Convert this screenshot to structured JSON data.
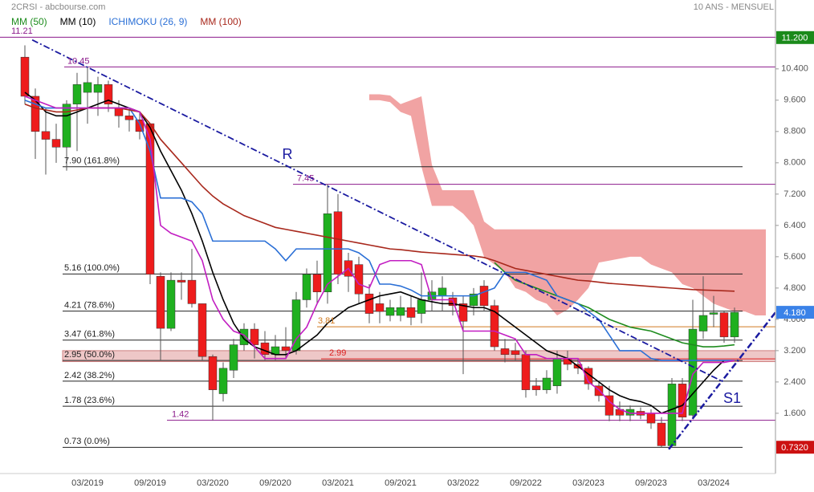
{
  "header": {
    "source": "2CRSI - abcbourse.com",
    "period": "10 ANS - MENSUEL"
  },
  "chart_data": {
    "type": "candlestick",
    "categories": [
      null,
      null,
      null,
      null,
      null,
      null,
      "03/2019",
      null,
      null,
      null,
      null,
      null,
      "09/2019",
      null,
      null,
      null,
      null,
      null,
      "03/2020",
      null,
      null,
      null,
      null,
      null,
      "09/2020",
      null,
      null,
      null,
      null,
      null,
      "03/2021",
      null,
      null,
      null,
      null,
      null,
      "09/2021",
      null,
      null,
      null,
      null,
      null,
      "03/2022",
      null,
      null,
      null,
      null,
      null,
      "09/2022",
      null,
      null,
      null,
      null,
      null,
      "03/2023",
      null,
      null,
      null,
      null,
      null,
      "09/2023",
      null,
      null,
      null,
      null,
      null,
      "03/2024",
      null,
      null,
      null,
      null,
      null
    ],
    "open": [
      10.7,
      9.7,
      8.8,
      8.6,
      8.4,
      9.5,
      9.8,
      9.8,
      10.0,
      9.4,
      9.2,
      9.1,
      9.0,
      5.1,
      3.77,
      5.0,
      5.0,
      4.4,
      3.05,
      2.1,
      2.7,
      3.35,
      3.75,
      3.4,
      3.1,
      3.3,
      3.2,
      4.5,
      5.15,
      4.7,
      6.75,
      5.5,
      5.4,
      4.65,
      4.4,
      4.1,
      4.1,
      4.3,
      4.15,
      4.5,
      4.6,
      4.55,
      4.4,
      4.35,
      4.85,
      4.35,
      3.25,
      3.2,
      3.1,
      2.3,
      2.2,
      2.3,
      3.0,
      2.85,
      2.75,
      2.3,
      2.05,
      1.7,
      1.55,
      1.65,
      1.6,
      1.35,
      0.77,
      2.35,
      1.55,
      3.7,
      4.13,
      4.17,
      3.55,
      null,
      null,
      null
    ],
    "high": [
      11.0,
      9.9,
      9.4,
      9.0,
      9.6,
      10.3,
      10.45,
      10.2,
      10.1,
      9.6,
      9.4,
      9.3,
      9.0,
      5.2,
      5.2,
      5.2,
      5.8,
      4.4,
      3.1,
      2.9,
      3.5,
      3.9,
      3.9,
      3.7,
      3.6,
      3.8,
      4.7,
      5.3,
      5.5,
      7.45,
      7.2,
      5.7,
      5.6,
      4.9,
      4.7,
      4.5,
      4.6,
      4.6,
      5.2,
      5.0,
      5.1,
      4.7,
      4.6,
      4.8,
      5.0,
      4.5,
      3.5,
      3.4,
      3.2,
      2.5,
      2.7,
      3.2,
      3.2,
      3.0,
      2.8,
      2.4,
      2.3,
      1.9,
      1.8,
      1.75,
      1.7,
      1.5,
      2.5,
      2.5,
      4.5,
      5.1,
      4.6,
      4.2,
      4.3,
      null,
      null,
      null
    ],
    "low": [
      9.5,
      8.1,
      7.7,
      8.0,
      7.8,
      8.3,
      9.0,
      9.2,
      9.3,
      8.9,
      8.8,
      8.6,
      4.9,
      2.95,
      3.7,
      4.5,
      4.3,
      2.95,
      1.42,
      1.9,
      2.5,
      3.2,
      3.0,
      2.95,
      2.95,
      3.0,
      3.1,
      4.3,
      4.4,
      4.4,
      4.9,
      4.7,
      4.4,
      3.9,
      3.9,
      3.95,
      3.95,
      3.85,
      3.9,
      4.2,
      4.2,
      4.1,
      2.6,
      4.1,
      4.2,
      3.2,
      2.9,
      2.95,
      2.0,
      2.05,
      2.1,
      2.1,
      2.7,
      2.6,
      2.2,
      1.9,
      1.4,
      1.4,
      1.4,
      1.45,
      1.2,
      0.73,
      0.73,
      1.4,
      1.5,
      3.5,
      3.8,
      3.4,
      3.4,
      null,
      null,
      null
    ],
    "close": [
      9.7,
      8.8,
      8.6,
      8.4,
      9.5,
      10.0,
      10.05,
      10.0,
      9.5,
      9.2,
      9.1,
      8.8,
      5.15,
      3.77,
      5.0,
      4.95,
      4.4,
      3.05,
      2.2,
      2.75,
      3.35,
      3.75,
      3.35,
      3.1,
      3.3,
      3.2,
      4.5,
      5.15,
      4.7,
      6.7,
      5.15,
      5.1,
      4.65,
      4.15,
      4.2,
      4.3,
      4.3,
      4.05,
      4.5,
      4.7,
      4.8,
      4.35,
      3.95,
      4.65,
      4.35,
      3.3,
      3.1,
      3.1,
      2.2,
      2.2,
      2.5,
      3.0,
      2.85,
      2.75,
      2.35,
      2.05,
      1.55,
      1.55,
      1.7,
      1.55,
      1.35,
      0.77,
      2.35,
      1.5,
      3.75,
      4.1,
      4.17,
      3.55,
      4.18,
      null,
      null,
      null
    ],
    "up_color": "#1fb01f",
    "down_color": "#ee1c1c",
    "series": [
      {
        "name": "MM (50)",
        "color": "#1e8c1e",
        "values": [
          null,
          null,
          null,
          null,
          null,
          null,
          null,
          null,
          null,
          null,
          null,
          null,
          null,
          null,
          null,
          null,
          null,
          null,
          null,
          null,
          null,
          null,
          null,
          null,
          null,
          null,
          null,
          null,
          null,
          null,
          null,
          null,
          null,
          null,
          null,
          null,
          null,
          null,
          null,
          null,
          null,
          null,
          null,
          null,
          null,
          5.45,
          5.2,
          5.0,
          4.9,
          4.8,
          4.7,
          4.6,
          4.5,
          4.4,
          4.3,
          4.15,
          4.0,
          3.9,
          3.8,
          3.75,
          3.7,
          3.6,
          3.5,
          3.4,
          3.35,
          3.3,
          3.3,
          3.32,
          3.35,
          null,
          null,
          null
        ]
      },
      {
        "name": "MM (10)",
        "color": "#000000",
        "values": [
          9.8,
          9.6,
          9.3,
          9.2,
          9.2,
          9.3,
          9.4,
          9.5,
          9.6,
          9.5,
          9.4,
          9.3,
          8.9,
          8.3,
          7.8,
          7.3,
          6.7,
          6.0,
          5.2,
          4.5,
          3.9,
          3.5,
          3.3,
          3.2,
          3.1,
          3.1,
          3.2,
          3.4,
          3.6,
          3.9,
          4.1,
          4.3,
          4.4,
          4.5,
          4.6,
          4.65,
          4.7,
          4.6,
          4.5,
          4.45,
          4.4,
          4.4,
          4.35,
          4.3,
          4.3,
          4.2,
          4.0,
          3.8,
          3.6,
          3.4,
          3.2,
          3.1,
          3.0,
          2.8,
          2.6,
          2.4,
          2.2,
          2.05,
          1.95,
          1.9,
          1.8,
          1.6,
          1.7,
          1.8,
          2.1,
          2.4,
          2.7,
          2.95,
          null,
          null,
          null,
          null
        ]
      },
      {
        "name": "ICHIMOKU (26, 9)",
        "color": "#2a6fd6",
        "values": [
          9.6,
          9.5,
          9.4,
          9.4,
          9.4,
          9.4,
          9.4,
          9.4,
          9.4,
          9.4,
          9.4,
          9.0,
          8.3,
          7.1,
          7.1,
          7.1,
          7.0,
          6.7,
          6.0,
          6.0,
          6.0,
          6.0,
          6.0,
          6.0,
          5.8,
          5.5,
          5.8,
          5.8,
          5.8,
          5.8,
          5.8,
          5.8,
          5.7,
          5.5,
          4.9,
          4.9,
          4.85,
          4.75,
          4.6,
          4.6,
          4.6,
          4.6,
          4.6,
          4.6,
          4.7,
          4.8,
          5.2,
          5.2,
          5.2,
          5.1,
          5.0,
          4.6,
          4.5,
          4.4,
          4.2,
          4.0,
          3.6,
          3.2,
          3.2,
          3.2,
          3.0,
          2.95,
          2.95,
          2.95,
          2.95,
          2.95,
          2.95,
          2.95,
          2.95,
          null,
          null,
          null
        ]
      },
      {
        "name": "MM (100)",
        "color": "#a8281c",
        "values": [
          9.5,
          9.4,
          9.35,
          9.3,
          9.3,
          9.35,
          9.4,
          9.4,
          9.4,
          9.4,
          9.35,
          9.3,
          9.0,
          8.6,
          8.3,
          8.0,
          7.7,
          7.4,
          7.15,
          6.95,
          6.8,
          6.65,
          6.55,
          6.45,
          6.35,
          6.3,
          6.25,
          6.2,
          6.15,
          6.1,
          6.05,
          6.0,
          5.95,
          5.9,
          5.85,
          5.8,
          5.78,
          5.75,
          5.72,
          5.7,
          5.68,
          5.66,
          5.64,
          5.62,
          5.58,
          5.5,
          5.4,
          5.3,
          5.25,
          5.2,
          5.15,
          5.1,
          5.05,
          5.0,
          4.98,
          4.95,
          4.92,
          4.9,
          4.88,
          4.86,
          4.84,
          4.82,
          4.8,
          4.78,
          4.76,
          4.75,
          4.74,
          4.73,
          4.72,
          null,
          null,
          null
        ]
      },
      {
        "color": "#c21ec2",
        "values": [
          9.7,
          9.6,
          9.5,
          9.4,
          9.4,
          9.4,
          9.4,
          9.4,
          9.4,
          9.4,
          9.4,
          9.3,
          8.6,
          6.4,
          6.2,
          6.1,
          6.0,
          5.5,
          4.5,
          4.0,
          3.7,
          3.6,
          3.3,
          3.0,
          3.0,
          3.0,
          3.5,
          3.8,
          4.4,
          4.9,
          5.1,
          5.3,
          4.9,
          4.8,
          5.4,
          5.5,
          5.5,
          5.5,
          5.4,
          4.5,
          4.5,
          4.5,
          3.7,
          3.7,
          3.7,
          3.7,
          3.6,
          3.5,
          3.1,
          3.1,
          3.0,
          3.0,
          3.0,
          3.0,
          2.4,
          2.2,
          1.9,
          1.7,
          1.6,
          1.6,
          1.6,
          1.6,
          1.6,
          1.6,
          2.6,
          2.9,
          2.9,
          2.9,
          2.95,
          null,
          null,
          null
        ]
      }
    ],
    "cloud": {
      "color": "#ee8c8c",
      "top": [
        null,
        null,
        null,
        null,
        null,
        null,
        null,
        null,
        null,
        null,
        null,
        null,
        null,
        null,
        null,
        null,
        null,
        null,
        null,
        null,
        null,
        null,
        null,
        null,
        null,
        null,
        null,
        null,
        null,
        null,
        null,
        null,
        null,
        9.75,
        9.75,
        9.72,
        9.5,
        9.6,
        9.7,
        7.95,
        7.3,
        7.3,
        7.3,
        7.3,
        6.5,
        6.3,
        6.3,
        6.3,
        6.3,
        6.3,
        6.3,
        6.3,
        6.3,
        6.3,
        6.3,
        6.3,
        6.3,
        6.3,
        6.3,
        6.3,
        6.3,
        6.3,
        6.3,
        6.3,
        6.3,
        6.3,
        6.3,
        6.3,
        6.3,
        6.3,
        6.3,
        6.3
      ],
      "bottom": [
        null,
        null,
        null,
        null,
        null,
        null,
        null,
        null,
        null,
        null,
        null,
        null,
        null,
        null,
        null,
        null,
        null,
        null,
        null,
        null,
        null,
        null,
        null,
        null,
        null,
        null,
        null,
        null,
        null,
        null,
        null,
        null,
        null,
        9.6,
        9.6,
        9.55,
        9.3,
        9.2,
        7.9,
        6.9,
        6.9,
        6.9,
        6.7,
        6.4,
        5.6,
        5.4,
        5.2,
        4.8,
        4.7,
        4.5,
        4.4,
        4.1,
        4.25,
        4.5,
        4.8,
        5.45,
        5.5,
        5.55,
        5.6,
        5.6,
        5.4,
        5.3,
        5.2,
        4.9,
        4.8,
        4.6,
        4.4,
        4.3,
        4.2,
        4.2,
        4.1,
        4.1
      ]
    },
    "ylim": [
      0.06,
      12.16
    ],
    "yticks": [
      {
        "value": 1.6,
        "label": "1.600"
      },
      {
        "value": 2.4,
        "label": "2.400"
      },
      {
        "value": 3.2,
        "label": "3.200"
      },
      {
        "value": 4.0,
        "label": "4.000"
      },
      {
        "value": 4.8,
        "label": "4.800"
      },
      {
        "value": 5.6,
        "label": "5.600"
      },
      {
        "value": 6.4,
        "label": "6.400"
      },
      {
        "value": 7.2,
        "label": "7.200"
      },
      {
        "value": 8.0,
        "label": "8.000"
      },
      {
        "value": 8.8,
        "label": "8.800"
      },
      {
        "value": 9.6,
        "label": "9.600"
      },
      {
        "value": 10.4,
        "label": "10.400"
      },
      {
        "value": 11.2,
        "label": "11.200"
      }
    ],
    "levels": [
      {
        "value": 7.9,
        "label": "7.90  (161.8%)"
      },
      {
        "value": 5.16,
        "label": "5.16  (100.0%)"
      },
      {
        "value": 4.21,
        "label": "4.21  (78.6%)"
      },
      {
        "value": 3.47,
        "label": "3.47  (61.8%)"
      },
      {
        "value": 2.95,
        "label": "2.95  (50.0%)"
      },
      {
        "value": 2.42,
        "label": "2.42  (38.2%)"
      },
      {
        "value": 1.78,
        "label": "1.78  (23.6%)"
      },
      {
        "value": 0.73,
        "label": "0.73  (0.0%)"
      }
    ],
    "annotations": [
      {
        "value": 11.21,
        "color": "#8b1a8b"
      },
      {
        "value": 10.45,
        "color": "#8b1a8b"
      },
      {
        "value": 7.45,
        "color": "#8b1a8b"
      },
      {
        "value": 1.42,
        "color": "#8b1a8b"
      },
      {
        "value": 3.81,
        "color": "#d07a20"
      },
      {
        "value": 2.99,
        "color": "#dd2222"
      }
    ],
    "zone": {
      "values": [
        2.92,
        3.2
      ],
      "color": "#e8b4b4"
    },
    "trendlines": [
      {
        "label": "R",
        "from": [
          0.7,
          11.14
        ],
        "to": [
          66.8,
          2.42
        ]
      },
      {
        "label": "S1",
        "from": [
          61.7,
          0.68
        ],
        "to": [
          72.6,
          4.41
        ]
      }
    ],
    "price_tags": [
      {
        "value": 11.2,
        "label": "11.200",
        "color": "#1a8a1a"
      },
      {
        "value": 4.18,
        "label": "4.180",
        "color": "#3a82e8"
      },
      {
        "value": 0.732,
        "label": "0.7320",
        "color": "#cc1111"
      }
    ]
  }
}
